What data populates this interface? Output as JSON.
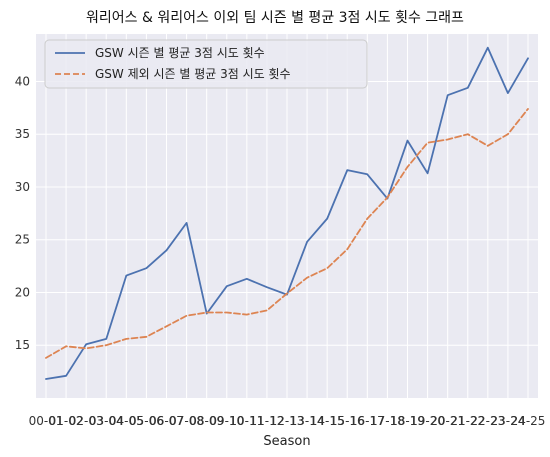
{
  "chart_data": {
    "type": "line",
    "title": "워리어스 & 워리어스 이외 팀 시즌 별 평균 3점 시도 횟수 그래프",
    "xlabel": "Season",
    "ylabel": "",
    "categories": [
      "00-01",
      "01-02",
      "02-03",
      "03-04",
      "04-05",
      "05-06",
      "06-07",
      "07-08",
      "08-09",
      "09-10",
      "10-11",
      "11-12",
      "12-13",
      "13-14",
      "14-15",
      "15-16",
      "16-17",
      "17-18",
      "18-19",
      "19-20",
      "20-21",
      "21-22",
      "22-23",
      "23-24",
      "24-25"
    ],
    "ylim": [
      10,
      44.5
    ],
    "yticks": [
      15,
      20,
      25,
      30,
      35,
      40
    ],
    "grid": true,
    "legend": "top-left",
    "series": [
      {
        "name": "GSW 시즌 별 평균 3점 시도 횟수",
        "color": "#4c72b0",
        "style": "solid",
        "values": [
          11.8,
          12.1,
          15.1,
          15.6,
          21.6,
          22.3,
          24.0,
          26.6,
          18.0,
          20.6,
          21.3,
          20.5,
          19.8,
          24.8,
          27.0,
          31.6,
          31.2,
          28.9,
          34.4,
          31.3,
          38.7,
          39.4,
          43.2,
          38.9,
          42.2
        ]
      },
      {
        "name": "GSW 제외 시즌 별 평균 3점 시도 횟수",
        "color": "#dd8452",
        "style": "dashed",
        "values": [
          13.8,
          14.9,
          14.7,
          15.0,
          15.6,
          15.8,
          16.8,
          17.8,
          18.1,
          18.1,
          17.9,
          18.3,
          19.9,
          21.4,
          22.3,
          24.1,
          27.0,
          29.0,
          31.9,
          34.2,
          34.5,
          35.0,
          33.9,
          35.0,
          37.4
        ]
      }
    ]
  }
}
